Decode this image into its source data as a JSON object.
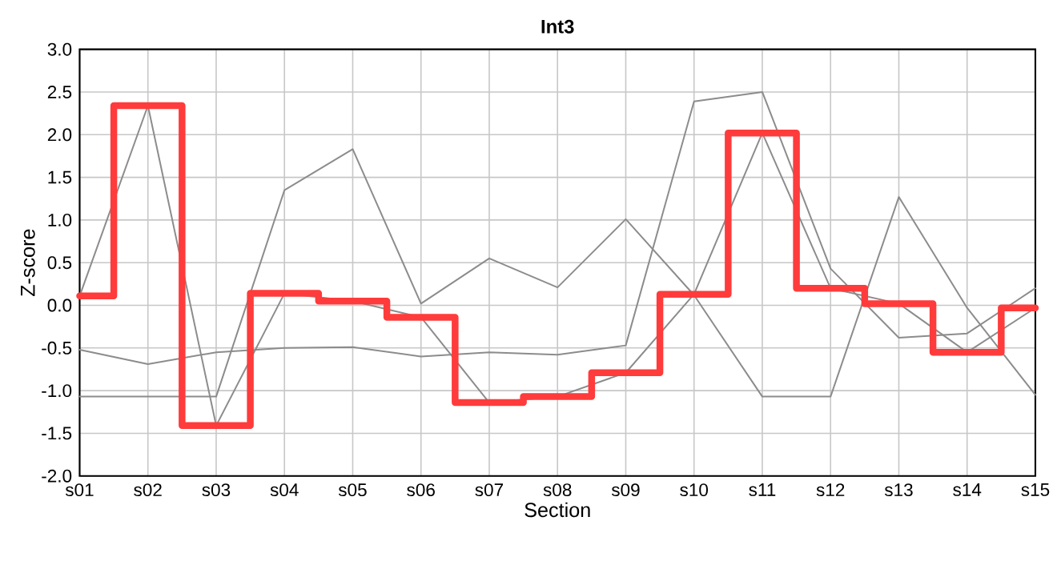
{
  "chart_data": {
    "type": "line",
    "title": "Int3",
    "xlabel": "Section",
    "ylabel": "Z-score",
    "categories": [
      "s01",
      "s02",
      "s03",
      "s04",
      "s05",
      "s06",
      "s07",
      "s08",
      "s09",
      "s10",
      "s11",
      "s12",
      "s13",
      "s14",
      "s15"
    ],
    "ylim": [
      -2.0,
      3.0
    ],
    "yticks": [
      {
        "value": -2.0,
        "label": "-2.0"
      },
      {
        "value": -1.5,
        "label": "-1.5"
      },
      {
        "value": -1.0,
        "label": "-1.0"
      },
      {
        "value": -0.5,
        "label": "-0.5"
      },
      {
        "value": 0.0,
        "label": "0.0"
      },
      {
        "value": 0.5,
        "label": "0.5"
      },
      {
        "value": 1.0,
        "label": "1.0"
      },
      {
        "value": 1.5,
        "label": "1.5"
      },
      {
        "value": 2.0,
        "label": "2.0"
      },
      {
        "value": 2.5,
        "label": "2.5"
      },
      {
        "value": 3.0,
        "label": "3.0"
      }
    ],
    "grid": true,
    "series": [
      {
        "color": "#8c8c8c",
        "values": [
          -1.07,
          -1.07,
          -1.07,
          1.35,
          1.83,
          0.02,
          0.55,
          0.21,
          1.01,
          0.12,
          -1.07,
          -1.07,
          1.27,
          -0.03,
          -1.05
        ]
      },
      {
        "color": "#8c8c8c",
        "values": [
          -0.52,
          -0.69,
          -0.55,
          -0.5,
          -0.49,
          -0.6,
          -0.55,
          -0.58,
          -0.47,
          2.39,
          2.5,
          0.43,
          -0.38,
          -0.33,
          0.2
        ]
      },
      {
        "color": "#8c8c8c",
        "values": [
          0.11,
          2.34,
          -1.41,
          0.14,
          0.05,
          -0.14,
          -1.14,
          -1.07,
          -0.79,
          0.13,
          2.02,
          0.2,
          0.02,
          -0.55,
          -0.03
        ]
      },
      {
        "type": "step",
        "color": "#ff3b3b",
        "values": [
          0.11,
          2.34,
          -1.41,
          0.14,
          0.05,
          -0.14,
          -1.14,
          -1.07,
          -0.79,
          0.13,
          2.02,
          0.2,
          0.02,
          -0.55,
          -0.03
        ]
      }
    ]
  }
}
